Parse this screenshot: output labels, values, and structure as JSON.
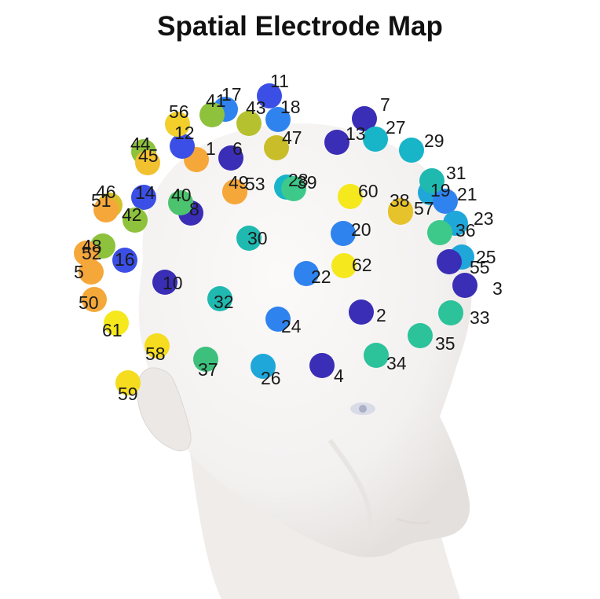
{
  "title": "Spatial Electrode Map",
  "colors": {
    "background": "#ffffff",
    "head_fill": "#f5f3f2",
    "head_shade": "#e3dfdd",
    "label_text": "#1a1a1a"
  },
  "electrodes": [
    {
      "id": "1",
      "color": "#f6a73a"
    },
    {
      "id": "2",
      "color": "#3a2db6"
    },
    {
      "id": "3",
      "color": "#3a2db6"
    },
    {
      "id": "4",
      "color": "#3a2db6"
    },
    {
      "id": "5",
      "color": "#f6a73a"
    },
    {
      "id": "6",
      "color": "#3a2db6"
    },
    {
      "id": "7",
      "color": "#3a2db6"
    },
    {
      "id": "8",
      "color": "#3a2db6"
    },
    {
      "id": "10",
      "color": "#3a2db6"
    },
    {
      "id": "11",
      "color": "#3b4fe6"
    },
    {
      "id": "12",
      "color": "#3b4fe6"
    },
    {
      "id": "13",
      "color": "#3a2db6"
    },
    {
      "id": "14",
      "color": "#3b4fe6"
    },
    {
      "id": "16",
      "color": "#3b4fe6"
    },
    {
      "id": "17",
      "color": "#2f83ee"
    },
    {
      "id": "18",
      "color": "#2f83ee"
    },
    {
      "id": "19",
      "color": "#1fa7d9"
    },
    {
      "id": "20",
      "color": "#2f83ee"
    },
    {
      "id": "21",
      "color": "#2f83ee"
    },
    {
      "id": "22",
      "color": "#2f83ee"
    },
    {
      "id": "23",
      "color": "#1fa7d9"
    },
    {
      "id": "24",
      "color": "#2f83ee"
    },
    {
      "id": "25",
      "color": "#1fa7d9"
    },
    {
      "id": "26",
      "color": "#1fa7d9"
    },
    {
      "id": "27",
      "color": "#18b4c8"
    },
    {
      "id": "28",
      "color": "#18b4c8"
    },
    {
      "id": "29",
      "color": "#18b4c8"
    },
    {
      "id": "30",
      "color": "#1fb9b0"
    },
    {
      "id": "31",
      "color": "#1fb9b0"
    },
    {
      "id": "32",
      "color": "#1fb9b0"
    },
    {
      "id": "33",
      "color": "#2cc29a"
    },
    {
      "id": "34",
      "color": "#2cc29a"
    },
    {
      "id": "35",
      "color": "#2cc29a"
    },
    {
      "id": "36",
      "color": "#3cc98a"
    },
    {
      "id": "37",
      "color": "#3cc07c"
    },
    {
      "id": "38",
      "color": "#e6c22b"
    },
    {
      "id": "39",
      "color": "#3cc98a"
    },
    {
      "id": "40",
      "color": "#4cc36e"
    },
    {
      "id": "41",
      "color": "#8ec23c"
    },
    {
      "id": "42",
      "color": "#8ec23c"
    },
    {
      "id": "43",
      "color": "#b5c12f"
    },
    {
      "id": "44",
      "color": "#8ec23c"
    },
    {
      "id": "45",
      "color": "#f2c130"
    },
    {
      "id": "46",
      "color": "#d5bf2c"
    },
    {
      "id": "47",
      "color": "#c9bd2a"
    },
    {
      "id": "48",
      "color": "#8ec23c"
    },
    {
      "id": "49",
      "color": "#f6a73a"
    },
    {
      "id": "50",
      "color": "#f3a839"
    },
    {
      "id": "51",
      "color": "#f6a73a"
    },
    {
      "id": "52",
      "color": "#f6a73a"
    },
    {
      "id": "53",
      "color": "#f6a73a"
    },
    {
      "id": "55",
      "color": "#3a2db6"
    },
    {
      "id": "56",
      "color": "#f2cf2a"
    },
    {
      "id": "57",
      "color": "#e6c22b"
    },
    {
      "id": "58",
      "color": "#f5dc1e"
    },
    {
      "id": "59",
      "color": "#f5dc1e"
    },
    {
      "id": "60",
      "color": "#f5e81c"
    },
    {
      "id": "61",
      "color": "#f5e81c"
    },
    {
      "id": "62",
      "color": "#f5e81c"
    }
  ]
}
